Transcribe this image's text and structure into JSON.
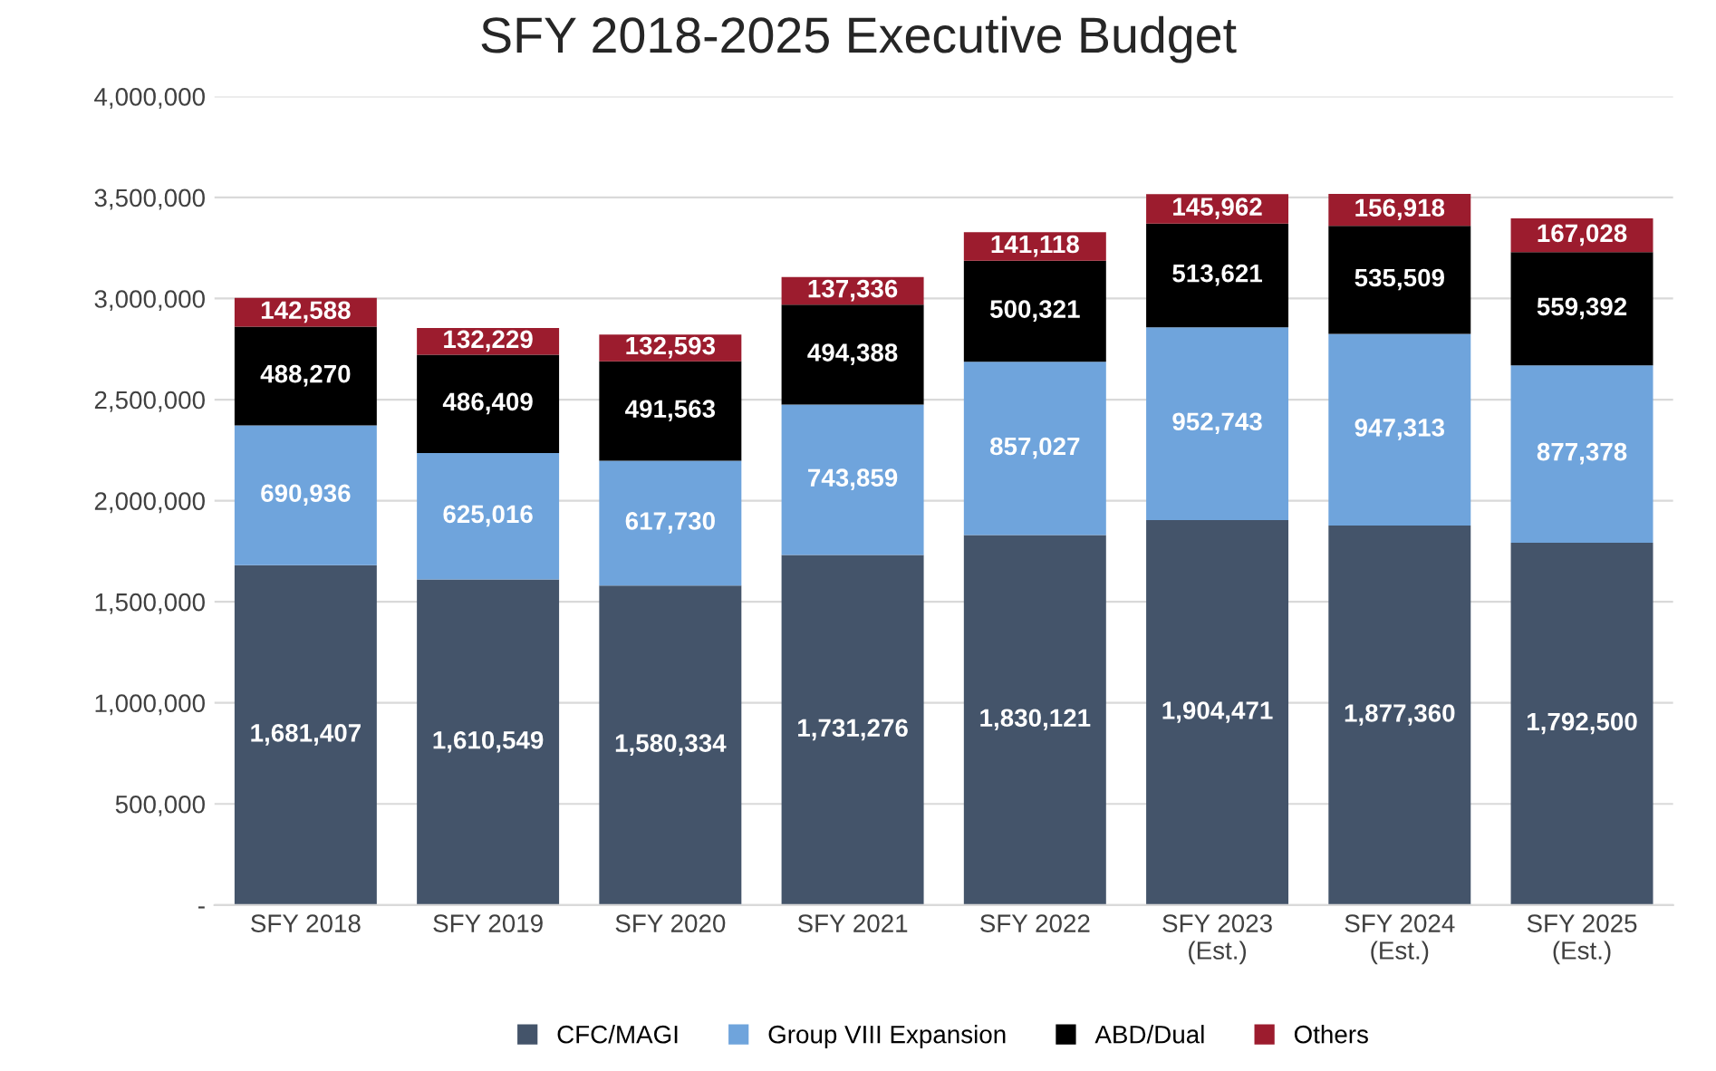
{
  "chart_data": {
    "type": "bar",
    "title": "SFY 2018-2025 Executive Budget",
    "stacked": true,
    "categories": [
      "SFY 2018",
      "SFY 2019",
      "SFY 2020",
      "SFY 2021",
      "SFY 2022",
      "SFY 2023\n(Est.)",
      "SFY 2024\n(Est.)",
      "SFY 2025\n(Est.)"
    ],
    "series": [
      {
        "name": "CFC/MAGI",
        "color": "#44546a",
        "values": [
          1681407,
          1610549,
          1580334,
          1731276,
          1830121,
          1904471,
          1877360,
          1792500
        ],
        "value_labels": [
          "1,681,407",
          "1,610,549",
          "1,580,334",
          "1,731,276",
          "1,830,121",
          "1,904,471",
          "1,877,360",
          "1,792,500"
        ]
      },
      {
        "name": "Group VIII Expansion",
        "color": "#6fa4dc",
        "values": [
          690936,
          625016,
          617730,
          743859,
          857027,
          952743,
          947313,
          877378
        ],
        "value_labels": [
          "690,936",
          "625,016",
          "617,730",
          "743,859",
          "857,027",
          "952,743",
          "947,313",
          "877,378"
        ]
      },
      {
        "name": "ABD/Dual",
        "color": "#000000",
        "values": [
          488270,
          486409,
          491563,
          494388,
          500321,
          513621,
          535509,
          559392
        ],
        "value_labels": [
          "488,270",
          "486,409",
          "491,563",
          "494,388",
          "500,321",
          "513,621",
          "535,509",
          "559,392"
        ]
      },
      {
        "name": "Others",
        "color": "#9c1c2e",
        "values": [
          142588,
          132229,
          132593,
          137336,
          141118,
          145962,
          156918,
          167028
        ],
        "value_labels": [
          "142,588",
          "132,229",
          "132,593",
          "137,336",
          "141,118",
          "145,962",
          "156,918",
          "167,028"
        ]
      }
    ],
    "ylim": [
      0,
      4000000
    ],
    "yticks": [
      {
        "value": 0,
        "label": "-"
      },
      {
        "value": 500000,
        "label": "500,000"
      },
      {
        "value": 1000000,
        "label": "1,000,000"
      },
      {
        "value": 1500000,
        "label": "1,500,000"
      },
      {
        "value": 2000000,
        "label": "2,000,000"
      },
      {
        "value": 2500000,
        "label": "2,500,000"
      },
      {
        "value": 3000000,
        "label": "3,000,000"
      },
      {
        "value": 3500000,
        "label": "3,500,000"
      },
      {
        "value": 4000000,
        "label": "4,000,000"
      }
    ],
    "grid": "y",
    "legend": "bottom"
  }
}
